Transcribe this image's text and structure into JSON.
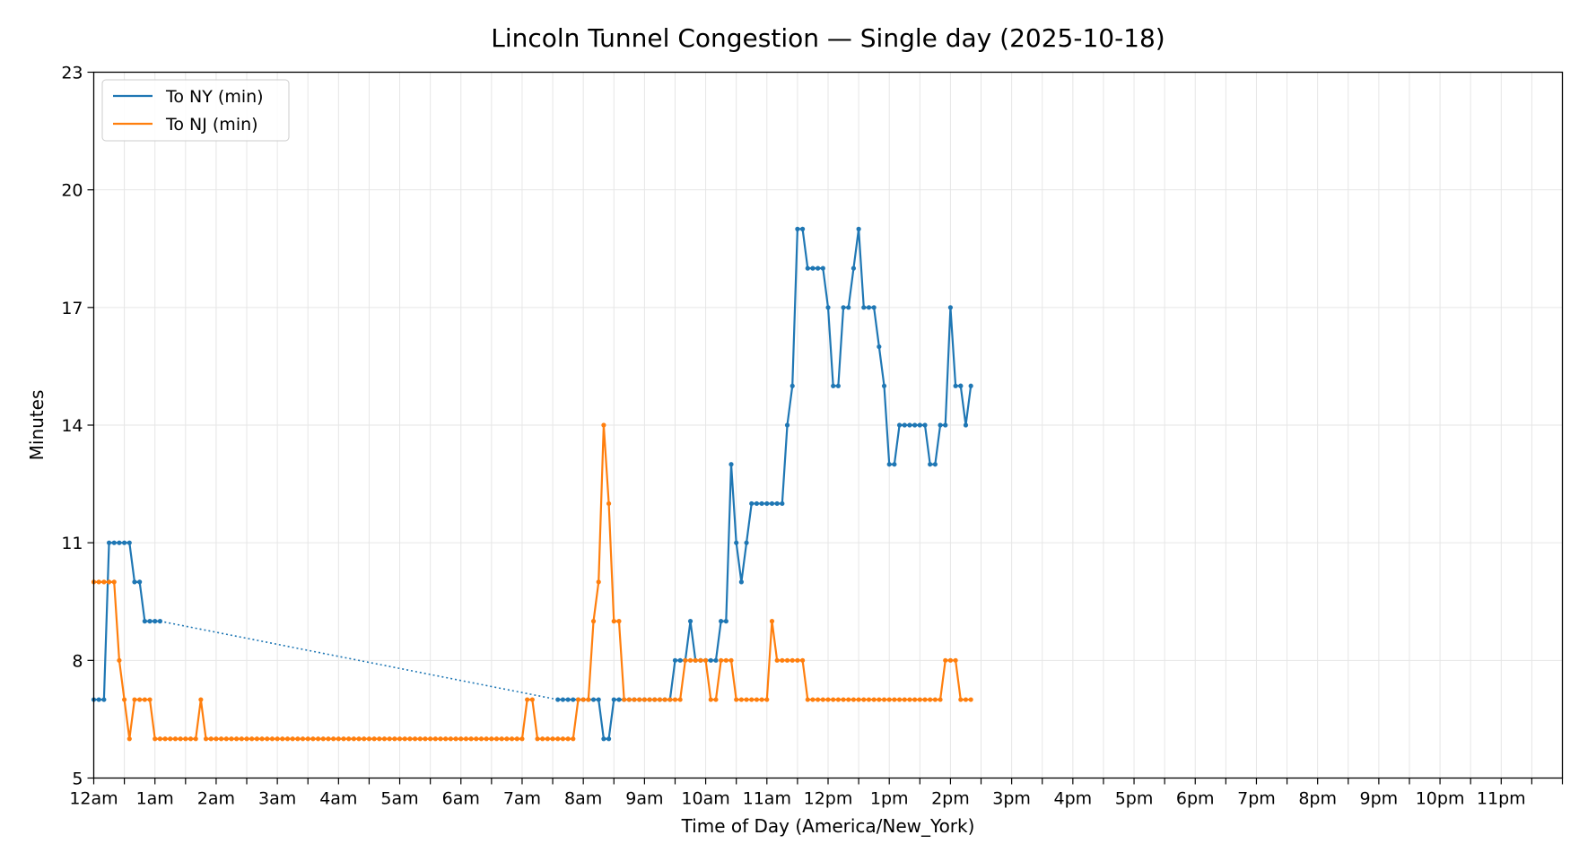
{
  "chart_data": {
    "type": "line",
    "title": "Lincoln Tunnel Congestion — Single day (2025-10-18)",
    "xlabel": "Time of Day (America/New_York)",
    "ylabel": "Minutes",
    "x_unit": "minutes after midnight",
    "xlim": [
      0,
      1440
    ],
    "ylim": [
      5,
      23
    ],
    "yticks": [
      5,
      8,
      11,
      14,
      17,
      20,
      23
    ],
    "xtick_labels": [
      "12am",
      "1am",
      "2am",
      "3am",
      "4am",
      "5am",
      "6am",
      "7am",
      "8am",
      "9am",
      "10am",
      "11am",
      "12pm",
      "1pm",
      "2pm",
      "3pm",
      "4pm",
      "5pm",
      "6pm",
      "7pm",
      "8pm",
      "9pm",
      "10pm",
      "11pm"
    ],
    "grid": true,
    "legend": "top-left",
    "series": [
      {
        "name": "To NY (min)",
        "color": "#1f77b4",
        "segments": [
          {
            "style": "solid",
            "x": [
              0,
              5,
              10,
              15,
              20,
              25,
              30,
              35,
              40,
              45,
              50,
              55,
              60,
              65
            ],
            "y": [
              7,
              7,
              7,
              11,
              11,
              11,
              11,
              11,
              10,
              10,
              9,
              9,
              9,
              9
            ]
          },
          {
            "style": "dotted",
            "x": [
              65,
              455
            ],
            "y": [
              9,
              7
            ]
          },
          {
            "style": "solid",
            "x": [
              455,
              460,
              465,
              470,
              475,
              480,
              485,
              490,
              495,
              500,
              505,
              510,
              515,
              520,
              525,
              530,
              535,
              540,
              545,
              550,
              555,
              560,
              565,
              570,
              575,
              580,
              585,
              590,
              595,
              600,
              605,
              610,
              615,
              620,
              625,
              630,
              635,
              640,
              645,
              650,
              655,
              660,
              665,
              670,
              675,
              680,
              685,
              690,
              695,
              700,
              705,
              710,
              715,
              720,
              725,
              730,
              735,
              740,
              745,
              750,
              755,
              760,
              765,
              770,
              775,
              780,
              785,
              790,
              795,
              800,
              805,
              810,
              815,
              820,
              825,
              830,
              835,
              840,
              845,
              850
            ],
            "y": [
              7,
              7,
              7,
              7,
              7,
              7,
              7,
              7,
              7,
              6,
              6,
              7,
              7,
              7,
              7,
              7,
              7,
              7,
              7,
              7,
              7,
              7,
              7,
              8,
              8,
              8,
              9,
              8,
              8,
              8,
              8,
              8,
              9,
              9,
              13,
              11,
              10,
              11,
              12,
              12,
              12,
              12,
              12,
              12,
              12,
              14,
              15,
              19,
              19,
              18,
              18,
              18,
              18,
              17,
              15,
              15,
              17,
              17,
              18,
              19,
              17,
              17,
              17,
              16,
              15,
              13,
              13,
              14,
              14,
              14,
              14,
              14,
              14,
              13,
              13,
              14,
              14,
              17,
              15,
              15
            ]
          },
          {
            "style": "solid",
            "x": [
              850,
              855,
              860
            ],
            "y": [
              15,
              14,
              15
            ]
          }
        ]
      },
      {
        "name": "To NJ (min)",
        "color": "#ff7f0e",
        "segments": [
          {
            "style": "solid",
            "x": [
              0,
              5,
              10,
              15,
              20,
              25,
              30,
              35,
              40,
              45,
              50,
              55,
              60,
              65,
              70,
              75,
              80,
              85,
              90,
              95,
              100,
              105,
              110,
              115,
              120,
              125,
              130,
              135,
              140,
              145,
              150,
              155,
              160,
              165,
              170,
              175,
              180,
              185,
              190,
              195,
              200,
              205,
              210,
              215,
              220,
              225,
              230,
              235,
              240,
              245,
              250,
              255,
              260,
              265,
              270,
              275,
              280,
              285,
              290,
              295,
              300,
              305,
              310,
              315,
              320,
              325,
              330,
              335,
              340,
              345,
              350,
              355,
              360,
              365,
              370,
              375,
              380,
              385,
              390,
              395,
              400,
              405,
              410,
              415,
              420,
              425,
              430,
              435,
              440,
              445,
              450,
              455,
              460,
              465,
              470,
              475,
              480,
              485,
              490,
              495,
              500,
              505,
              510,
              515,
              520,
              525,
              530,
              535,
              540,
              545,
              550,
              555,
              560,
              565,
              570,
              575,
              580,
              585,
              590,
              595,
              600,
              605,
              610,
              615,
              620,
              625,
              630,
              635,
              640,
              645,
              650,
              655,
              660,
              665,
              670,
              675,
              680,
              685,
              690,
              695,
              700,
              705,
              710,
              715,
              720,
              725,
              730,
              735,
              740,
              745,
              750,
              755,
              760,
              765,
              770,
              775,
              780,
              785,
              790,
              795,
              800,
              805,
              810,
              815,
              820,
              825,
              830,
              835,
              840,
              845,
              850,
              855,
              860
            ],
            "y": [
              10,
              10,
              10,
              10,
              10,
              8,
              7,
              6,
              7,
              7,
              7,
              7,
              6,
              6,
              6,
              6,
              6,
              6,
              6,
              6,
              6,
              7,
              6,
              6,
              6,
              6,
              6,
              6,
              6,
              6,
              6,
              6,
              6,
              6,
              6,
              6,
              6,
              6,
              6,
              6,
              6,
              6,
              6,
              6,
              6,
              6,
              6,
              6,
              6,
              6,
              6,
              6,
              6,
              6,
              6,
              6,
              6,
              6,
              6,
              6,
              6,
              6,
              6,
              6,
              6,
              6,
              6,
              6,
              6,
              6,
              6,
              6,
              6,
              6,
              6,
              6,
              6,
              6,
              6,
              6,
              6,
              6,
              6,
              6,
              6,
              7,
              7,
              6,
              6,
              6,
              6,
              6,
              6,
              6,
              6,
              7,
              7,
              7,
              9,
              10,
              14,
              12,
              9,
              9,
              7,
              7,
              7,
              7,
              7,
              7,
              7,
              7,
              7,
              7,
              7,
              7,
              8,
              8,
              8,
              8,
              8,
              7,
              7,
              8,
              8,
              8,
              7,
              7,
              7,
              7,
              7,
              7,
              7,
              9,
              8,
              8,
              8,
              8,
              8,
              8,
              7,
              7,
              7,
              7,
              7,
              7,
              7,
              7,
              7,
              7,
              7,
              7,
              7,
              7,
              7,
              7,
              7,
              7,
              7,
              7,
              7,
              7,
              7,
              7,
              7,
              7,
              7,
              8,
              8,
              8,
              7,
              7,
              7
            ]
          }
        ]
      }
    ]
  }
}
